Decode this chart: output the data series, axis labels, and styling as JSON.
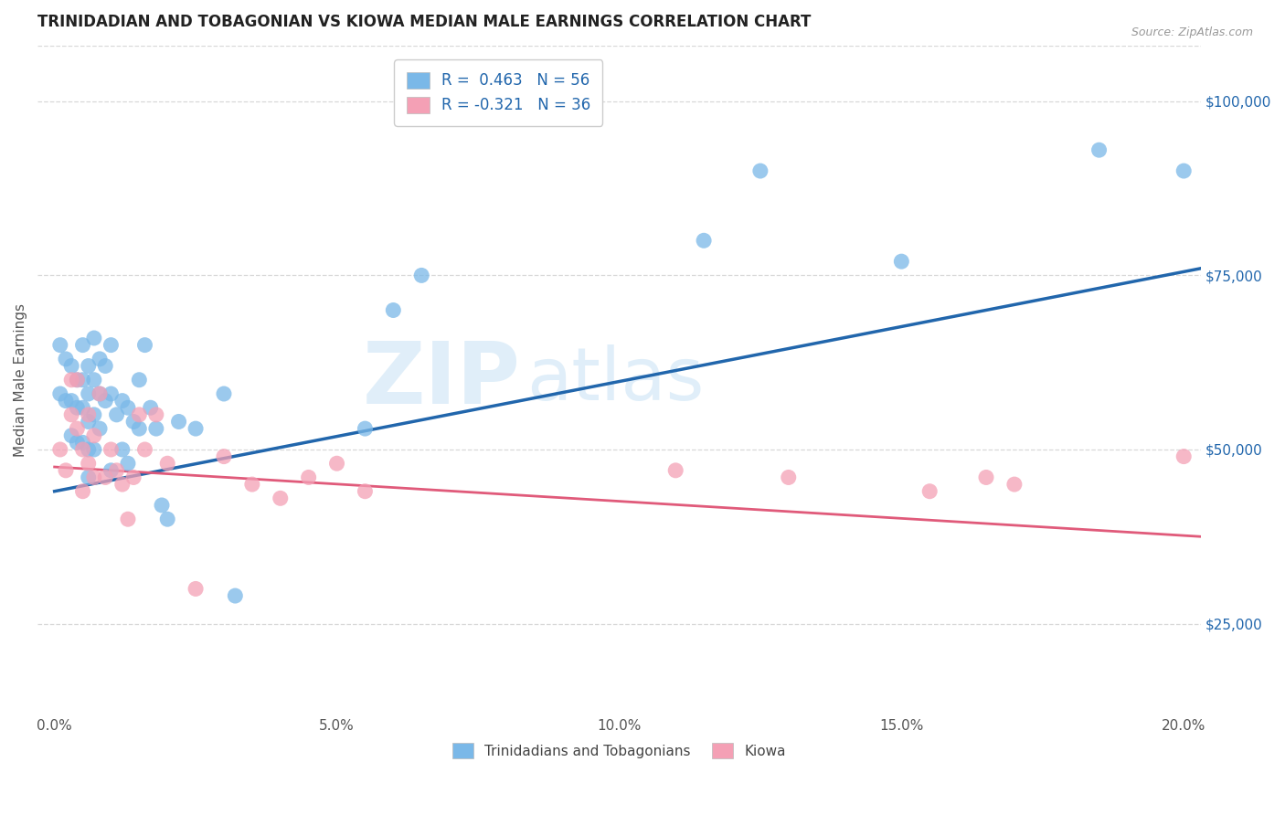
{
  "title": "TRINIDADIAN AND TOBAGONIAN VS KIOWA MEDIAN MALE EARNINGS CORRELATION CHART",
  "source": "Source: ZipAtlas.com",
  "xlabel_ticks": [
    "0.0%",
    "5.0%",
    "10.0%",
    "15.0%",
    "20.0%"
  ],
  "xlabel_vals": [
    0.0,
    0.05,
    0.1,
    0.15,
    0.2
  ],
  "ylabel": "Median Male Earnings",
  "right_ytick_labels": [
    "$25,000",
    "$50,000",
    "$75,000",
    "$100,000"
  ],
  "right_ytick_vals": [
    25000,
    50000,
    75000,
    100000
  ],
  "ylim": [
    12000,
    108000
  ],
  "xlim": [
    -0.003,
    0.203
  ],
  "blue_color": "#7ab8e8",
  "pink_color": "#f4a0b5",
  "blue_line_color": "#2166ac",
  "pink_line_color": "#e05a7a",
  "legend_blue_label": "R =  0.463   N = 56",
  "legend_pink_label": "R = -0.321   N = 36",
  "bottom_legend_blue": "Trinidadians and Tobagonians",
  "bottom_legend_pink": "Kiowa",
  "background_color": "#ffffff",
  "grid_color": "#d8d8d8",
  "blue_line_x0": 0.0,
  "blue_line_y0": 44000,
  "blue_line_x1": 0.203,
  "blue_line_y1": 76000,
  "pink_line_x0": 0.0,
  "pink_line_y0": 47500,
  "pink_line_x1": 0.203,
  "pink_line_y1": 37500,
  "blue_scatter_x": [
    0.001,
    0.001,
    0.002,
    0.002,
    0.003,
    0.003,
    0.003,
    0.004,
    0.004,
    0.004,
    0.005,
    0.005,
    0.005,
    0.005,
    0.006,
    0.006,
    0.006,
    0.006,
    0.006,
    0.007,
    0.007,
    0.007,
    0.007,
    0.008,
    0.008,
    0.008,
    0.009,
    0.009,
    0.01,
    0.01,
    0.01,
    0.011,
    0.012,
    0.012,
    0.013,
    0.013,
    0.014,
    0.015,
    0.015,
    0.016,
    0.017,
    0.018,
    0.019,
    0.02,
    0.022,
    0.025,
    0.03,
    0.032,
    0.055,
    0.06,
    0.065,
    0.115,
    0.125,
    0.15,
    0.185,
    0.2
  ],
  "blue_scatter_y": [
    65000,
    58000,
    63000,
    57000,
    62000,
    57000,
    52000,
    60000,
    56000,
    51000,
    65000,
    60000,
    56000,
    51000,
    62000,
    58000,
    54000,
    50000,
    46000,
    66000,
    60000,
    55000,
    50000,
    63000,
    58000,
    53000,
    62000,
    57000,
    65000,
    58000,
    47000,
    55000,
    57000,
    50000,
    56000,
    48000,
    54000,
    60000,
    53000,
    65000,
    56000,
    53000,
    42000,
    40000,
    54000,
    53000,
    58000,
    29000,
    53000,
    70000,
    75000,
    80000,
    90000,
    77000,
    93000,
    90000
  ],
  "pink_scatter_x": [
    0.001,
    0.002,
    0.003,
    0.003,
    0.004,
    0.004,
    0.005,
    0.005,
    0.006,
    0.006,
    0.007,
    0.007,
    0.008,
    0.009,
    0.01,
    0.011,
    0.012,
    0.013,
    0.014,
    0.015,
    0.016,
    0.018,
    0.02,
    0.025,
    0.03,
    0.035,
    0.04,
    0.045,
    0.05,
    0.055,
    0.11,
    0.13,
    0.155,
    0.165,
    0.17,
    0.2
  ],
  "pink_scatter_y": [
    50000,
    47000,
    60000,
    55000,
    60000,
    53000,
    50000,
    44000,
    55000,
    48000,
    52000,
    46000,
    58000,
    46000,
    50000,
    47000,
    45000,
    40000,
    46000,
    55000,
    50000,
    55000,
    48000,
    30000,
    49000,
    45000,
    43000,
    46000,
    48000,
    44000,
    47000,
    46000,
    44000,
    46000,
    45000,
    49000
  ]
}
